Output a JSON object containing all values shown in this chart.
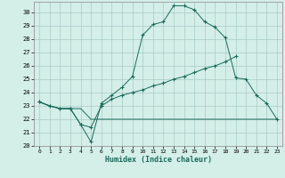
{
  "xlabel": "Humidex (Indice chaleur)",
  "x_values": [
    0,
    1,
    2,
    3,
    4,
    5,
    6,
    7,
    8,
    9,
    10,
    11,
    12,
    13,
    14,
    15,
    16,
    17,
    18,
    19,
    20,
    21,
    22,
    23
  ],
  "line1": [
    23.3,
    23.0,
    22.8,
    22.8,
    21.6,
    20.3,
    23.2,
    23.8,
    24.4,
    25.2,
    28.3,
    29.1,
    29.3,
    30.5,
    30.5,
    30.2,
    29.3,
    28.9,
    28.1,
    25.1,
    25.0,
    23.8,
    23.2,
    22.0
  ],
  "line2": [
    23.3,
    23.0,
    22.8,
    22.8,
    21.6,
    21.4,
    23.0,
    23.5,
    23.8,
    24.0,
    24.2,
    24.5,
    24.7,
    25.0,
    25.2,
    25.5,
    25.8,
    26.0,
    26.3,
    26.7,
    null,
    null,
    null,
    null
  ],
  "line3": [
    23.3,
    23.0,
    22.8,
    22.8,
    22.8,
    22.0,
    22.0,
    22.0,
    22.0,
    22.0,
    22.0,
    22.0,
    22.0,
    22.0,
    22.0,
    22.0,
    22.0,
    22.0,
    22.0,
    22.0,
    22.0,
    22.0,
    22.0,
    22.0
  ],
  "line_color": "#1a6b5a",
  "bg_color": "#d4eee8",
  "grid_color": "#a8ccc4",
  "ylim": [
    20,
    30.8
  ],
  "yticks": [
    20,
    21,
    22,
    23,
    24,
    25,
    26,
    27,
    28,
    29,
    30
  ],
  "xticks": [
    0,
    1,
    2,
    3,
    4,
    5,
    6,
    7,
    8,
    9,
    10,
    11,
    12,
    13,
    14,
    15,
    16,
    17,
    18,
    19,
    20,
    21,
    22,
    23
  ]
}
